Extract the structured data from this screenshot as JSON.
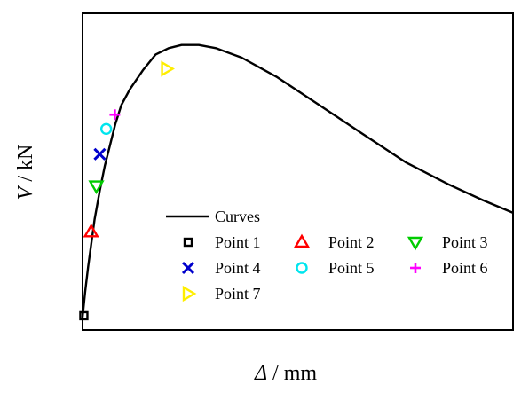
{
  "chart_data": {
    "type": "line",
    "xlabel_symbol": "Δ",
    "xlabel_unit": " / mm",
    "ylabel_symbol": "V",
    "ylabel_unit": " / kN",
    "xlim": [
      0,
      100
    ],
    "ylim": [
      0,
      100
    ],
    "x_ticks_shown": false,
    "y_ticks_shown": false,
    "grid": false,
    "legend_position": "lower-right",
    "curve": {
      "name": "Curves",
      "color": "#000000",
      "points": [
        [
          0.0,
          4.0
        ],
        [
          0.6,
          12.0
        ],
        [
          1.3,
          20.0
        ],
        [
          2.0,
          27.0
        ],
        [
          2.8,
          35.0
        ],
        [
          4.0,
          44.0
        ],
        [
          5.2,
          52.0
        ],
        [
          6.5,
          59.0
        ],
        [
          7.6,
          65.0
        ],
        [
          9.0,
          71.0
        ],
        [
          11.0,
          76.0
        ],
        [
          14.0,
          82.0
        ],
        [
          17.0,
          87.0
        ],
        [
          20.0,
          89.0
        ],
        [
          23.0,
          90.0
        ],
        [
          27.0,
          90.0
        ],
        [
          31.0,
          89.0
        ],
        [
          37.0,
          86.0
        ],
        [
          45.0,
          80.0
        ],
        [
          55.0,
          71.0
        ],
        [
          65.0,
          62.0
        ],
        [
          75.0,
          53.0
        ],
        [
          85.0,
          46.0
        ],
        [
          93.0,
          41.0
        ],
        [
          100.0,
          37.0
        ]
      ]
    },
    "markers": [
      {
        "name": "Point 1",
        "symbol": "square",
        "color": "#000000",
        "x": 0.3,
        "y": 4.5
      },
      {
        "name": "Point 2",
        "symbol": "triangle-up",
        "color": "#ff0000",
        "x": 2.0,
        "y": 31.0
      },
      {
        "name": "Point 3",
        "symbol": "triangle-down",
        "color": "#00cc00",
        "x": 3.2,
        "y": 45.5
      },
      {
        "name": "Point 4",
        "symbol": "x",
        "color": "#0000cc",
        "x": 4.0,
        "y": 55.5
      },
      {
        "name": "Point 5",
        "symbol": "circle",
        "color": "#00e5ee",
        "x": 5.5,
        "y": 63.5
      },
      {
        "name": "Point 6",
        "symbol": "plus",
        "color": "#ff00ff",
        "x": 7.5,
        "y": 68.0
      },
      {
        "name": "Point 7",
        "symbol": "triangle-right",
        "color": "#ffee00",
        "x": 19.5,
        "y": 82.5
      }
    ],
    "legend": {
      "line_label": "Curves",
      "entries": [
        {
          "label": "Point 1",
          "symbol": "square",
          "color": "#000000"
        },
        {
          "label": "Point 2",
          "symbol": "triangle-up",
          "color": "#ff0000"
        },
        {
          "label": "Point 3",
          "symbol": "triangle-down",
          "color": "#00cc00"
        },
        {
          "label": "Point 4",
          "symbol": "x",
          "color": "#0000cc"
        },
        {
          "label": "Point 5",
          "symbol": "circle",
          "color": "#00e5ee"
        },
        {
          "label": "Point 6",
          "symbol": "plus",
          "color": "#ff00ff"
        },
        {
          "label": "Point 7",
          "symbol": "triangle-right",
          "color": "#ffee00"
        }
      ]
    }
  }
}
